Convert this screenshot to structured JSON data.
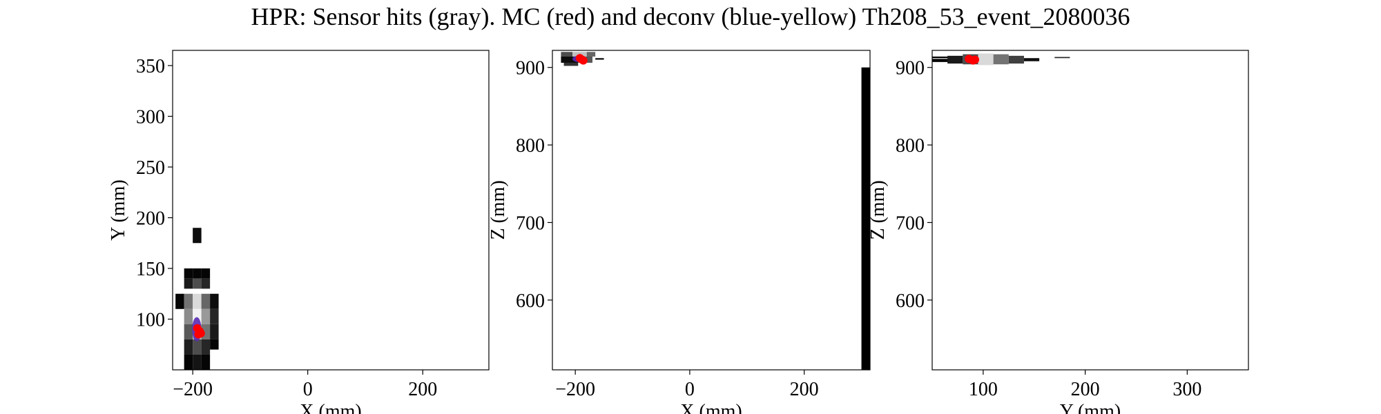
{
  "title": "HPR: Sensor hits (gray). MC (red) and deconv (blue-yellow) Th208_53_event_2080036",
  "colors": {
    "mc": "#ff0000",
    "deconv": "#5a2bb5",
    "frame": "#000000",
    "background": "#ffffff"
  },
  "chart_data": [
    {
      "type": "heatmap",
      "xlabel": "X (mm)",
      "ylabel": "Y (mm)",
      "xlim": [
        -235,
        315
      ],
      "ylim": [
        50,
        365
      ],
      "xticks": [
        -200,
        0,
        200
      ],
      "yticks": [
        100,
        150,
        200,
        250,
        300,
        350
      ],
      "grid": false,
      "sensor_hits": [
        {
          "x": -200,
          "y": 175,
          "w": 15,
          "h": 15,
          "gray": 0.05
        },
        {
          "x": -215,
          "y": 140,
          "w": 15,
          "h": 10,
          "gray": 0.02
        },
        {
          "x": -200,
          "y": 140,
          "w": 15,
          "h": 10,
          "gray": 0.02
        },
        {
          "x": -185,
          "y": 140,
          "w": 15,
          "h": 10,
          "gray": 0.02
        },
        {
          "x": -215,
          "y": 130,
          "w": 15,
          "h": 10,
          "gray": 0.1
        },
        {
          "x": -200,
          "y": 130,
          "w": 15,
          "h": 10,
          "gray": 0.3
        },
        {
          "x": -185,
          "y": 130,
          "w": 15,
          "h": 10,
          "gray": 0.15
        },
        {
          "x": -230,
          "y": 110,
          "w": 15,
          "h": 15,
          "gray": 0.02
        },
        {
          "x": -215,
          "y": 110,
          "w": 15,
          "h": 15,
          "gray": 0.45
        },
        {
          "x": -200,
          "y": 110,
          "w": 15,
          "h": 15,
          "gray": 0.85
        },
        {
          "x": -185,
          "y": 110,
          "w": 15,
          "h": 15,
          "gray": 0.4
        },
        {
          "x": -170,
          "y": 110,
          "w": 15,
          "h": 15,
          "gray": 0.05
        },
        {
          "x": -215,
          "y": 95,
          "w": 15,
          "h": 15,
          "gray": 0.55
        },
        {
          "x": -200,
          "y": 95,
          "w": 15,
          "h": 15,
          "gray": 0.95
        },
        {
          "x": -185,
          "y": 95,
          "w": 15,
          "h": 15,
          "gray": 0.6
        },
        {
          "x": -170,
          "y": 95,
          "w": 15,
          "h": 15,
          "gray": 0.15
        },
        {
          "x": -215,
          "y": 80,
          "w": 15,
          "h": 15,
          "gray": 0.35
        },
        {
          "x": -200,
          "y": 80,
          "w": 15,
          "h": 15,
          "gray": 0.7
        },
        {
          "x": -185,
          "y": 80,
          "w": 15,
          "h": 15,
          "gray": 0.45
        },
        {
          "x": -170,
          "y": 80,
          "w": 15,
          "h": 15,
          "gray": 0.1
        },
        {
          "x": -215,
          "y": 65,
          "w": 15,
          "h": 15,
          "gray": 0.12
        },
        {
          "x": -200,
          "y": 65,
          "w": 15,
          "h": 15,
          "gray": 0.3
        },
        {
          "x": -185,
          "y": 65,
          "w": 15,
          "h": 15,
          "gray": 0.15
        },
        {
          "x": -170,
          "y": 70,
          "w": 15,
          "h": 10,
          "gray": 0.02
        },
        {
          "x": -215,
          "y": 50,
          "w": 15,
          "h": 15,
          "gray": 0.02
        },
        {
          "x": -200,
          "y": 50,
          "w": 15,
          "h": 15,
          "gray": 0.08
        },
        {
          "x": -185,
          "y": 50,
          "w": 15,
          "h": 15,
          "gray": 0.02
        }
      ],
      "deconv": [
        {
          "x": -193,
          "y": 90,
          "rx": 8,
          "ry": 12
        }
      ],
      "mc_points": [
        [
          -188,
          88
        ],
        [
          -192,
          91
        ],
        [
          -186,
          86
        ],
        [
          -190,
          85
        ]
      ]
    },
    {
      "type": "heatmap",
      "xlabel": "X (mm)",
      "ylabel": "Z (mm)",
      "xlim": [
        -240,
        315
      ],
      "ylim": [
        510,
        922
      ],
      "xticks": [
        -200,
        0,
        200
      ],
      "yticks": [
        600,
        700,
        800,
        900
      ],
      "grid": false,
      "sensor_hits": [
        {
          "x": -225,
          "y": 906,
          "w": 30,
          "h": 8,
          "gray": 0.05
        },
        {
          "x": -195,
          "y": 906,
          "w": 25,
          "h": 8,
          "gray": 0.35
        },
        {
          "x": -225,
          "y": 914,
          "w": 20,
          "h": 6,
          "gray": 0.3
        },
        {
          "x": -205,
          "y": 914,
          "w": 25,
          "h": 6,
          "gray": 0.75
        },
        {
          "x": -180,
          "y": 914,
          "w": 15,
          "h": 6,
          "gray": 0.4
        },
        {
          "x": -220,
          "y": 902,
          "w": 25,
          "h": 4,
          "gray": 0.2
        },
        {
          "x": -165,
          "y": 910,
          "w": 15,
          "h": 2,
          "gray": 0.05
        },
        {
          "x": 300,
          "y": 510,
          "w": 15,
          "h": 390,
          "gray": 0.0
        }
      ],
      "deconv": [
        {
          "x": -195,
          "y": 911,
          "rx": 10,
          "ry": 4
        }
      ],
      "mc_points": [
        [
          -188,
          910
        ],
        [
          -192,
          912
        ],
        [
          -186,
          909
        ]
      ]
    },
    {
      "type": "heatmap",
      "xlabel": "Y (mm)",
      "ylabel": "Z (mm)",
      "xlim": [
        50,
        360
      ],
      "ylim": [
        510,
        922
      ],
      "xticks": [
        100,
        200,
        300
      ],
      "yticks": [
        600,
        700,
        800,
        900
      ],
      "grid": false,
      "sensor_hits": [
        {
          "x": 50,
          "y": 907,
          "w": 20,
          "h": 4,
          "gray": 0.0
        },
        {
          "x": 50,
          "y": 912,
          "w": 20,
          "h": 2,
          "gray": 0.0
        },
        {
          "x": 65,
          "y": 905,
          "w": 15,
          "h": 10,
          "gray": 0.1
        },
        {
          "x": 80,
          "y": 904,
          "w": 15,
          "h": 13,
          "gray": 0.3
        },
        {
          "x": 95,
          "y": 903,
          "w": 15,
          "h": 15,
          "gray": 0.85
        },
        {
          "x": 110,
          "y": 904,
          "w": 15,
          "h": 13,
          "gray": 0.45
        },
        {
          "x": 125,
          "y": 905,
          "w": 15,
          "h": 10,
          "gray": 0.25
        },
        {
          "x": 140,
          "y": 908,
          "w": 15,
          "h": 4,
          "gray": 0.05
        },
        {
          "x": 170,
          "y": 912,
          "w": 15,
          "h": 1.5,
          "gray": 0.15
        }
      ],
      "deconv": [
        {
          "x": 88,
          "y": 910,
          "rx": 5,
          "ry": 4
        }
      ],
      "mc_points": [
        [
          90,
          909
        ],
        [
          86,
          911
        ],
        [
          92,
          910
        ]
      ]
    }
  ]
}
